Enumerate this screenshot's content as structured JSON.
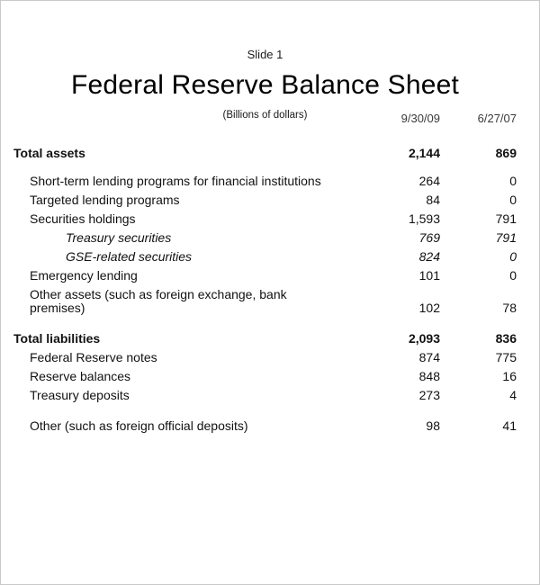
{
  "slide": {
    "slide_label": "Slide 1",
    "title": "Federal Reserve Balance Sheet",
    "subtitle": "(Billions of dollars)"
  },
  "table": {
    "columns": [
      "9/30/09",
      "6/27/07"
    ],
    "rows": [
      {
        "label": "Total assets",
        "v1": "2,144",
        "v2": "869"
      },
      {
        "label": "Short-term lending programs for financial institutions",
        "v1": "264",
        "v2": "0"
      },
      {
        "label": "Targeted lending programs",
        "v1": "84",
        "v2": "0"
      },
      {
        "label": "Securities holdings",
        "v1": "1,593",
        "v2": "791"
      },
      {
        "label": "Treasury securities",
        "v1": "769",
        "v2": "791"
      },
      {
        "label": "GSE-related securities",
        "v1": "824",
        "v2": "0"
      },
      {
        "label": "Emergency lending",
        "v1": "101",
        "v2": "0"
      },
      {
        "label": "Other assets (such as foreign exchange, bank\npremises)",
        "v1": "102",
        "v2": "78"
      },
      {
        "label": "Total liabilities",
        "v1": "2,093",
        "v2": "836"
      },
      {
        "label": "Federal Reserve notes",
        "v1": "874",
        "v2": "775"
      },
      {
        "label": "Reserve balances",
        "v1": "848",
        "v2": "16"
      },
      {
        "label": "Treasury deposits",
        "v1": "273",
        "v2": "4"
      },
      {
        "label": "Other (such as foreign official deposits)",
        "v1": "98",
        "v2": "41"
      }
    ]
  }
}
